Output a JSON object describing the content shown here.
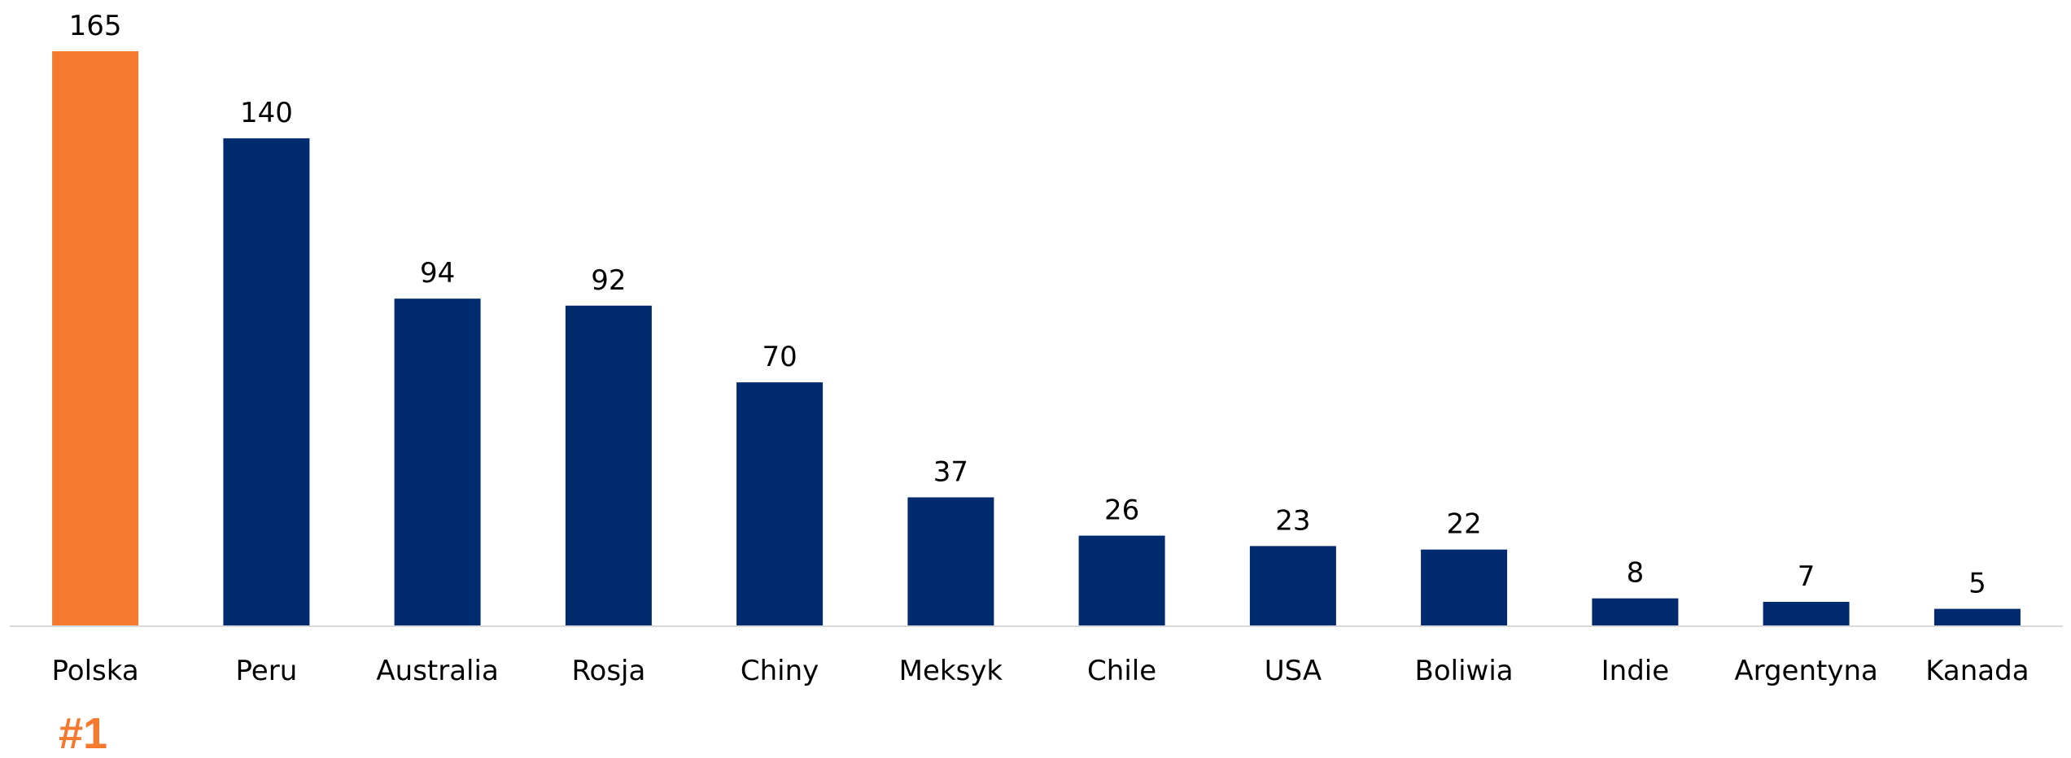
{
  "chart_data": {
    "type": "bar",
    "categories": [
      "Polska",
      "Peru",
      "Australia",
      "Rosja",
      "Chiny",
      "Meksyk",
      "Chile",
      "USA",
      "Boliwia",
      "Indie",
      "Argentyna",
      "Kanada"
    ],
    "values": [
      165,
      140,
      94,
      92,
      70,
      37,
      26,
      23,
      22,
      8,
      7,
      5
    ],
    "title": "",
    "xlabel": "",
    "ylabel": "",
    "ylim": [
      0,
      165
    ],
    "grid": false,
    "legend": "none",
    "data_labels": true,
    "colors": {
      "highlight": "#f47a30",
      "default": "#002b6e",
      "baseline": "#d9d9d9"
    },
    "highlight_index": 0
  },
  "annotation": {
    "rank_label": "#1"
  }
}
